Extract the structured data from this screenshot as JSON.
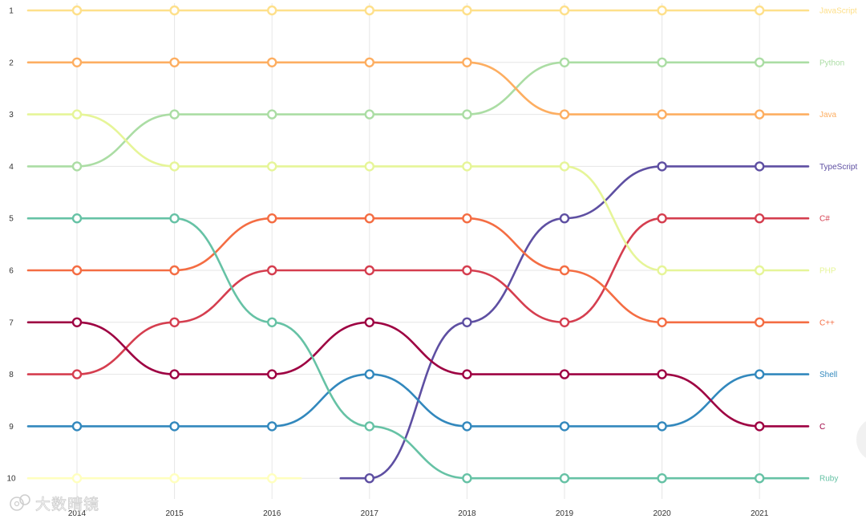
{
  "watermark": {
    "text": "大数晴镜"
  },
  "chart_data": {
    "type": "line",
    "subtype": "bump",
    "title": "",
    "xlabel": "",
    "ylabel": "",
    "x": [
      "2014",
      "2015",
      "2016",
      "2017",
      "2018",
      "2019",
      "2020",
      "2021"
    ],
    "y_ticks": [
      "1",
      "2",
      "3",
      "4",
      "5",
      "6",
      "7",
      "8",
      "9",
      "10"
    ],
    "ylim": [
      1,
      10
    ],
    "y_inverted": true,
    "grid": true,
    "legend": "labels at right end of each line",
    "series": [
      {
        "name": "JavaScript",
        "color": "#fee08b",
        "values": [
          1,
          1,
          1,
          1,
          1,
          1,
          1,
          1
        ]
      },
      {
        "name": "Python",
        "color": "#abdda4",
        "values": [
          4,
          3,
          3,
          3,
          3,
          2,
          2,
          2
        ]
      },
      {
        "name": "Java",
        "color": "#fdae61",
        "values": [
          2,
          2,
          2,
          2,
          2,
          3,
          3,
          3
        ]
      },
      {
        "name": "TypeScript",
        "color": "#5e4fa2",
        "values": [
          null,
          null,
          null,
          10,
          7,
          5,
          4,
          4
        ]
      },
      {
        "name": "C#",
        "color": "#d53e4f",
        "values": [
          8,
          7,
          6,
          6,
          6,
          7,
          5,
          5
        ]
      },
      {
        "name": "PHP",
        "color": "#e6f598",
        "values": [
          3,
          4,
          4,
          4,
          4,
          4,
          6,
          6
        ]
      },
      {
        "name": "C++",
        "color": "#f46d43",
        "values": [
          6,
          6,
          5,
          5,
          5,
          6,
          7,
          7
        ]
      },
      {
        "name": "Shell",
        "color": "#3288bd",
        "values": [
          9,
          9,
          9,
          8,
          9,
          9,
          9,
          8
        ]
      },
      {
        "name": "C",
        "color": "#9e0142",
        "values": [
          7,
          8,
          8,
          7,
          8,
          8,
          8,
          9
        ]
      },
      {
        "name": "Ruby",
        "color": "#66c2a5",
        "values": [
          5,
          5,
          7,
          9,
          10,
          10,
          10,
          10
        ]
      },
      {
        "name": "",
        "color": "#ffffbf",
        "values": [
          10,
          10,
          10,
          null,
          null,
          null,
          null,
          null
        ]
      }
    ]
  }
}
